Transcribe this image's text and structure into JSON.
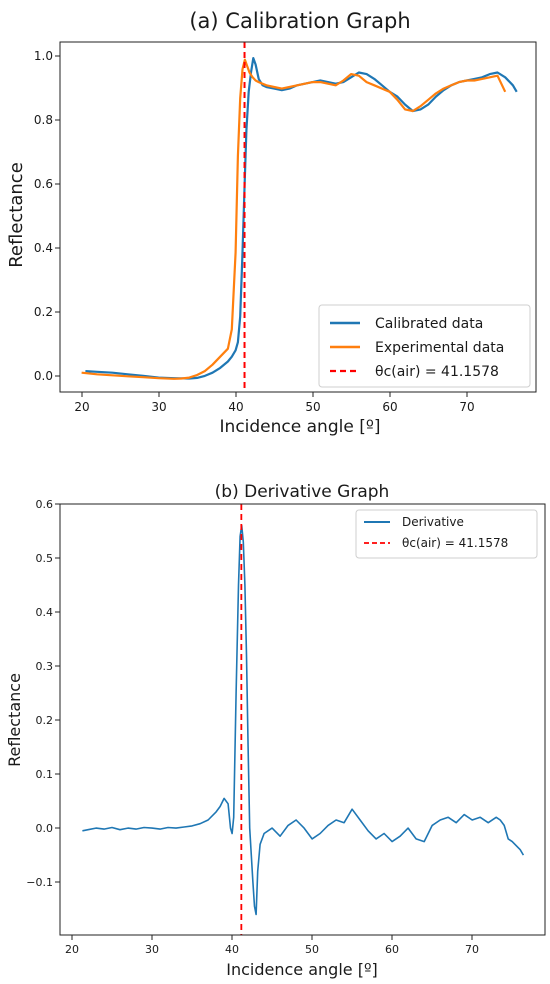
{
  "chart_data": [
    {
      "type": "line",
      "title": "(a) Calibration Graph",
      "xlabel": "Incidence angle [º]",
      "ylabel": "Reflectance",
      "xlim": [
        17.2,
        79
      ],
      "ylim": [
        -0.035,
        1.055
      ],
      "xticks": [
        "20",
        "30",
        "40",
        "50",
        "60",
        "70"
      ],
      "yticks": [
        "0.0",
        "0.2",
        "0.4",
        "0.6",
        "0.8",
        "1.0"
      ],
      "legend_position": "lower-right",
      "series": [
        {
          "name": "Calibrated data",
          "color": "#1f77b4",
          "x": [
            20.5,
            22,
            24,
            26,
            28,
            30,
            32,
            34,
            35,
            36,
            37,
            38,
            39,
            39.5,
            40,
            40.3,
            40.6,
            40.9,
            41.15,
            41.4,
            41.7,
            42.0,
            42.3,
            42.6,
            43.0,
            43.5,
            44,
            45,
            46,
            47,
            48,
            49,
            50,
            51,
            52,
            53,
            54,
            55,
            56,
            57,
            58,
            59,
            60,
            61,
            62,
            63,
            64,
            65,
            66,
            67,
            68,
            69,
            70,
            71,
            72,
            73,
            74,
            75,
            76,
            76.5
          ],
          "y": [
            0.03,
            0.028,
            0.025,
            0.02,
            0.015,
            0.01,
            0.008,
            0.007,
            0.009,
            0.015,
            0.025,
            0.04,
            0.06,
            0.075,
            0.095,
            0.12,
            0.2,
            0.4,
            0.6,
            0.78,
            0.9,
            0.96,
            1.005,
            0.985,
            0.94,
            0.92,
            0.915,
            0.91,
            0.905,
            0.91,
            0.92,
            0.925,
            0.93,
            0.935,
            0.93,
            0.925,
            0.93,
            0.945,
            0.96,
            0.955,
            0.94,
            0.92,
            0.9,
            0.885,
            0.86,
            0.84,
            0.845,
            0.86,
            0.885,
            0.905,
            0.92,
            0.93,
            0.935,
            0.94,
            0.945,
            0.955,
            0.96,
            0.945,
            0.92,
            0.9
          ]
        },
        {
          "name": "Experimental data",
          "color": "#ff7f0e",
          "x": [
            20,
            22,
            24,
            26,
            28,
            30,
            32,
            33,
            34,
            35,
            36,
            37,
            38,
            39,
            39.5,
            40,
            40.3,
            40.6,
            40.9,
            41.2,
            41.5,
            41.8,
            42.2,
            42.6,
            43,
            44,
            45,
            46,
            47,
            48,
            49,
            50,
            51,
            52,
            53,
            54,
            55,
            56,
            57,
            58,
            59,
            60,
            61,
            62,
            63,
            64,
            65,
            66,
            67,
            68,
            69,
            70,
            71,
            72,
            73,
            74,
            75
          ],
          "y": [
            0.025,
            0.02,
            0.017,
            0.014,
            0.011,
            0.008,
            0.006,
            0.007,
            0.01,
            0.018,
            0.03,
            0.05,
            0.075,
            0.1,
            0.16,
            0.4,
            0.7,
            0.88,
            0.97,
            1.0,
            0.98,
            0.96,
            0.945,
            0.935,
            0.93,
            0.92,
            0.915,
            0.91,
            0.915,
            0.92,
            0.925,
            0.93,
            0.93,
            0.925,
            0.92,
            0.935,
            0.955,
            0.95,
            0.93,
            0.92,
            0.91,
            0.9,
            0.875,
            0.845,
            0.84,
            0.855,
            0.875,
            0.895,
            0.91,
            0.92,
            0.93,
            0.935,
            0.935,
            0.94,
            0.945,
            0.95,
            0.9
          ]
        },
        {
          "name": "θc(air) = 41.1578",
          "color": "#ff0000",
          "style": "dashed",
          "vline_x": 41.1578
        }
      ]
    },
    {
      "type": "line",
      "title": "(b) Derivative Graph",
      "xlabel": "Incidence angle [º]",
      "ylabel": "Reflectance",
      "xlim": [
        18.5,
        79.1
      ],
      "ylim": [
        -0.198,
        0.6
      ],
      "xticks": [
        "20",
        "30",
        "40",
        "50",
        "60",
        "70"
      ],
      "yticks": [
        "0.6",
        "0.5",
        "0.4",
        "0.3",
        "0.2",
        "0.1",
        "0.0",
        "−0.1"
      ],
      "legend_position": "top-right",
      "series": [
        {
          "name": "Derivative",
          "color": "#1f77b4",
          "x": [
            21.3,
            22,
            23,
            24,
            25,
            26,
            27,
            28,
            29,
            30,
            31,
            32,
            33,
            34,
            35,
            36,
            37,
            38,
            38.5,
            39,
            39.5,
            39.8,
            40.0,
            40.2,
            40.5,
            40.8,
            41.0,
            41.2,
            41.4,
            41.6,
            41.8,
            42.0,
            42.2,
            42.4,
            42.6,
            42.8,
            43.0,
            43.2,
            43.5,
            44,
            45,
            46,
            47,
            48,
            49,
            50,
            51,
            52,
            53,
            54,
            55,
            56,
            57,
            58,
            59,
            60,
            61,
            62,
            63,
            64,
            65,
            66,
            67,
            68,
            69,
            70,
            71,
            72,
            73,
            73.5,
            74,
            74.5,
            75,
            76,
            76.4
          ],
          "y": [
            -0.005,
            -0.003,
            0.0,
            -0.002,
            0.001,
            -0.003,
            0.0,
            -0.002,
            0.001,
            0.0,
            -0.002,
            0.001,
            0.0,
            0.002,
            0.004,
            0.008,
            0.015,
            0.03,
            0.04,
            0.055,
            0.045,
            0.0,
            -0.01,
            0.02,
            0.25,
            0.45,
            0.54,
            0.56,
            0.53,
            0.45,
            0.32,
            0.15,
            0.0,
            -0.05,
            -0.1,
            -0.145,
            -0.16,
            -0.08,
            -0.03,
            -0.01,
            0.0,
            -0.015,
            0.005,
            0.015,
            0.0,
            -0.02,
            -0.01,
            0.005,
            0.015,
            0.01,
            0.035,
            0.015,
            -0.005,
            -0.02,
            -0.01,
            -0.025,
            -0.015,
            0.0,
            -0.02,
            -0.025,
            0.005,
            0.015,
            0.02,
            0.01,
            0.025,
            0.015,
            0.02,
            0.01,
            0.02,
            0.015,
            0.005,
            -0.02,
            -0.025,
            -0.04,
            -0.05
          ]
        },
        {
          "name": "θc(air) = 41.1578",
          "color": "#ff0000",
          "style": "dashed",
          "vline_x": 41.1578
        }
      ]
    }
  ]
}
